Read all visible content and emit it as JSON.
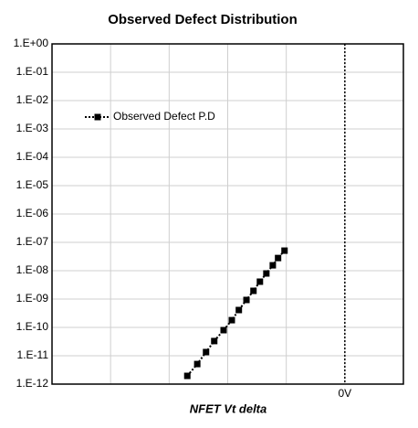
{
  "chart_data": {
    "type": "line",
    "title": "Observed Defect Distribution",
    "x_label": "NFET Vt delta",
    "y_scale": "log",
    "grid": true,
    "legend": "upper left",
    "ylim": [
      1e-12,
      1
    ],
    "yticks": [
      {
        "value": 1,
        "label": "1.E+00"
      },
      {
        "value": 0.1,
        "label": "1.E-01"
      },
      {
        "value": 0.01,
        "label": "1.E-02"
      },
      {
        "value": 0.001,
        "label": "1.E-03"
      },
      {
        "value": 0.0001,
        "label": "1.E-04"
      },
      {
        "value": 1e-05,
        "label": "1.E-05"
      },
      {
        "value": 1e-06,
        "label": "1.E-06"
      },
      {
        "value": 1e-07,
        "label": "1.E-07"
      },
      {
        "value": 1e-08,
        "label": "1.E-08"
      },
      {
        "value": 1e-09,
        "label": "1.E-09"
      },
      {
        "value": 1e-10,
        "label": "1.E-10"
      },
      {
        "value": 1e-11,
        "label": "1.E-11"
      },
      {
        "value": 1e-12,
        "label": "1.E-12"
      }
    ],
    "xlim": [
      -5,
      1
    ],
    "xticks": [
      {
        "value": 0,
        "label": "0V"
      }
    ],
    "xgrid": [
      -4,
      -3,
      -2,
      -1
    ],
    "reference_line_x": 0,
    "x": [
      -2.69,
      -2.52,
      -2.37,
      -2.23,
      -2.07,
      -1.93,
      -1.81,
      -1.68,
      -1.56,
      -1.45,
      -1.34,
      -1.23,
      -1.14,
      -1.03
    ],
    "series": [
      {
        "name": "Observed Defect P.D",
        "color": "#000000",
        "values": [
          1.95e-12,
          5.1e-12,
          1.35e-11,
          3.3e-11,
          8e-11,
          1.8e-10,
          4.1e-10,
          9.3e-10,
          1.95e-09,
          4.1e-09,
          8e-09,
          1.55e-08,
          2.8e-08,
          5.1e-08
        ]
      }
    ]
  }
}
